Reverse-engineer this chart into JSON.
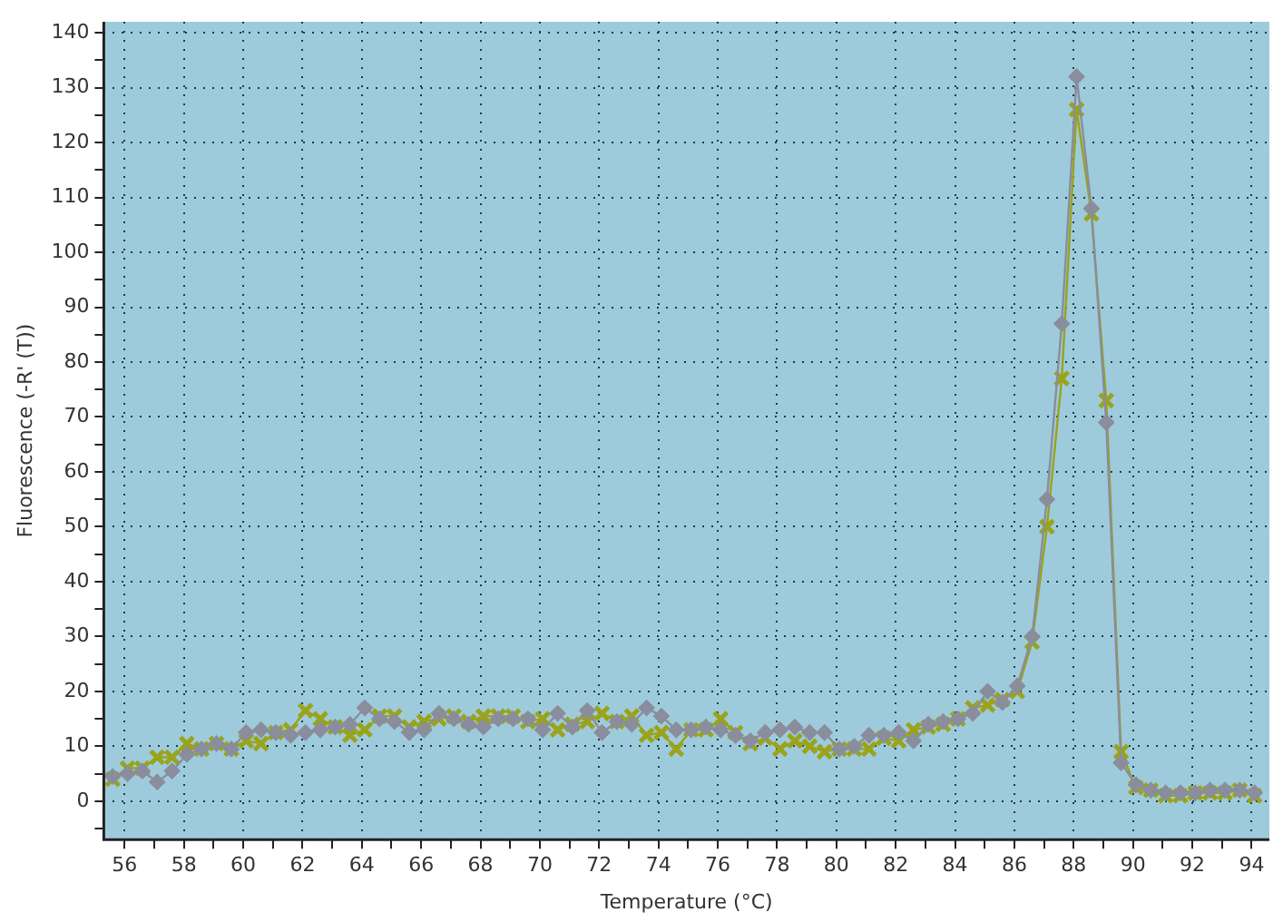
{
  "chart_data": {
    "type": "line",
    "xlabel": "Temperature (°C)",
    "ylabel": "Fluorescence (-R' (T))",
    "x": [
      55.6,
      56.1,
      56.6,
      57.1,
      57.6,
      58.1,
      58.6,
      59.1,
      59.6,
      60.1,
      60.6,
      61.1,
      61.6,
      62.1,
      62.6,
      63.1,
      63.6,
      64.1,
      64.6,
      65.1,
      65.6,
      66.1,
      66.6,
      67.1,
      67.6,
      68.1,
      68.6,
      69.1,
      69.6,
      70.1,
      70.6,
      71.1,
      71.6,
      72.1,
      72.6,
      73.1,
      73.6,
      74.1,
      74.6,
      75.1,
      75.6,
      76.1,
      76.6,
      77.1,
      77.6,
      78.1,
      78.6,
      79.1,
      79.6,
      80.1,
      80.6,
      81.1,
      81.6,
      82.1,
      82.6,
      83.1,
      83.6,
      84.1,
      84.6,
      85.1,
      85.6,
      86.1,
      86.6,
      87.1,
      87.6,
      88.1,
      88.6,
      89.1,
      89.6,
      90.1,
      90.6,
      91.1,
      91.6,
      92.1,
      92.6,
      93.1,
      93.6,
      94.1
    ],
    "series": [
      {
        "color": "#8a8d9c",
        "marker": "diamond",
        "values": [
          4.5,
          5,
          5.5,
          3.5,
          5.5,
          8.5,
          9.5,
          10.5,
          9.5,
          12.5,
          13,
          12.5,
          12,
          12.5,
          13,
          13.5,
          14,
          17,
          15,
          14.5,
          12.5,
          13,
          16,
          15,
          14,
          13.5,
          15,
          15,
          15,
          13,
          16,
          13.5,
          16.5,
          12.5,
          14.5,
          14,
          17,
          15.5,
          13,
          13,
          13.5,
          13,
          12,
          11,
          12.5,
          13,
          13.5,
          12.5,
          12.5,
          9.5,
          10,
          12,
          12,
          12.5,
          11,
          14,
          14.5,
          15,
          16,
          20,
          18,
          21,
          30,
          55,
          87,
          132,
          108,
          69,
          7,
          3,
          2,
          1.5,
          1.5,
          1.5,
          2,
          2,
          2,
          1.5
        ]
      },
      {
        "color": "#9aa31a",
        "marker": "cross",
        "values": [
          4,
          6,
          6,
          8,
          8,
          10.5,
          9.5,
          10.5,
          9.5,
          11,
          10.5,
          12.5,
          13,
          16.5,
          15,
          13.5,
          12,
          13,
          15.5,
          15.5,
          13.5,
          14.5,
          15,
          15.5,
          14.5,
          15.5,
          15.5,
          15.5,
          14.5,
          15,
          13,
          14,
          14.5,
          16,
          14.5,
          15.5,
          12,
          12.5,
          9.5,
          13,
          13,
          15,
          12.5,
          10.5,
          11.5,
          9.5,
          11,
          10,
          9,
          9.5,
          9.5,
          9.5,
          11.5,
          11,
          13,
          13.5,
          14,
          15,
          17,
          17.5,
          18.5,
          20,
          29,
          50,
          77,
          126,
          107,
          73,
          9,
          2.5,
          2,
          1,
          1,
          1.5,
          1.5,
          1.5,
          2,
          1
        ]
      }
    ],
    "xlim": [
      55.3,
      94.6
    ],
    "ylim": [
      -7,
      142
    ],
    "xticks": [
      56,
      {
        "value": 57,
        "label": null
      },
      58,
      {
        "value": 59,
        "label": null
      },
      60,
      {
        "value": 61,
        "label": null
      },
      62,
      {
        "value": 63,
        "label": null
      },
      64,
      {
        "value": 65,
        "label": null
      },
      66,
      {
        "value": 67,
        "label": null
      },
      68,
      {
        "value": 69,
        "label": null
      },
      70,
      {
        "value": 71,
        "label": null
      },
      72,
      {
        "value": 73,
        "label": null
      },
      74,
      {
        "value": 75,
        "label": null
      },
      76,
      {
        "value": 77,
        "label": null
      },
      78,
      {
        "value": 79,
        "label": null
      },
      80,
      {
        "value": 81,
        "label": null
      },
      82,
      {
        "value": 83,
        "label": null
      },
      84,
      {
        "value": 85,
        "label": null
      },
      86,
      {
        "value": 87,
        "label": null
      },
      88,
      {
        "value": 89,
        "label": null
      },
      90,
      {
        "value": 91,
        "label": null
      },
      92,
      {
        "value": 93,
        "label": null
      },
      94
    ],
    "yticks": [
      {
        "value": -5,
        "label": null
      },
      0,
      {
        "value": 5,
        "label": null
      },
      10,
      {
        "value": 15,
        "label": null
      },
      20,
      {
        "value": 25,
        "label": null
      },
      30,
      {
        "value": 35,
        "label": null
      },
      40,
      {
        "value": 45,
        "label": null
      },
      50,
      {
        "value": 55,
        "label": null
      },
      60,
      {
        "value": 65,
        "label": null
      },
      70,
      {
        "value": 75,
        "label": null
      },
      80,
      {
        "value": 85,
        "label": null
      },
      90,
      {
        "value": 95,
        "label": null
      },
      100,
      {
        "value": 105,
        "label": null
      },
      110,
      {
        "value": 115,
        "label": null
      },
      120,
      {
        "value": 125,
        "label": null
      },
      130,
      {
        "value": 135,
        "label": null
      },
      140
    ],
    "grid": true,
    "legend": false,
    "line_style": "solid"
  }
}
